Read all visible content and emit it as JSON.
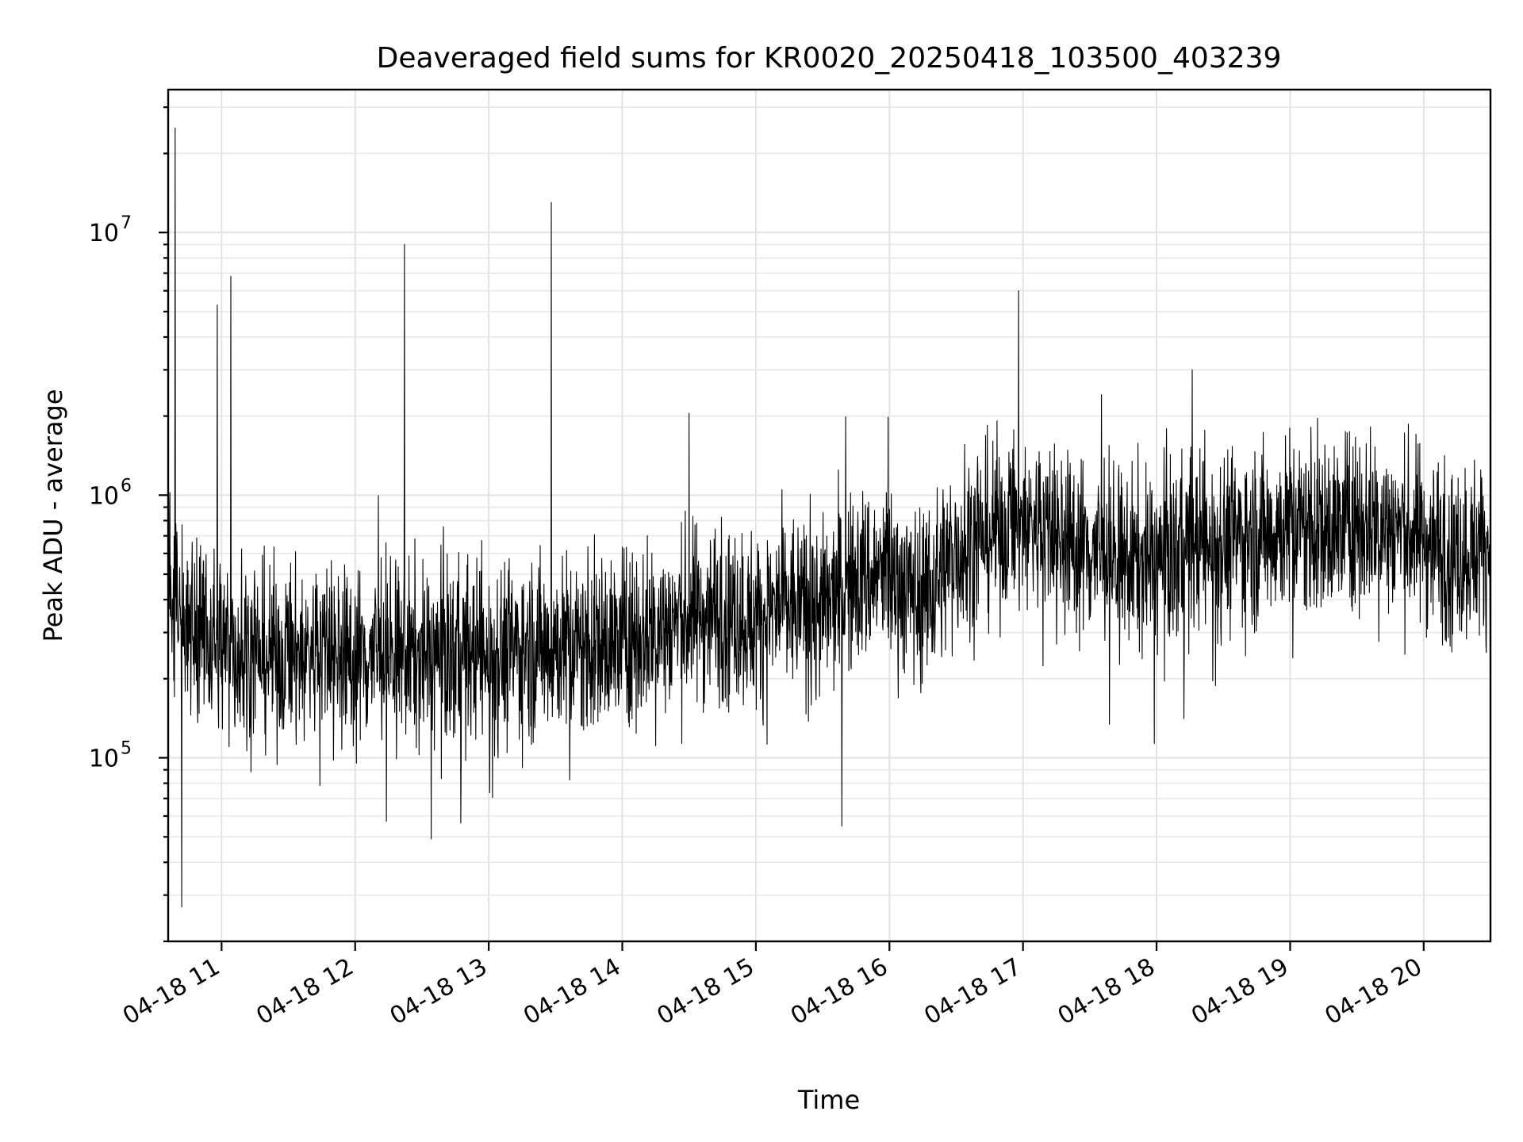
{
  "chart_data": {
    "type": "line",
    "title": "Deaveraged field sums for KR0020_20250418_103500_403239",
    "xlabel": "Time",
    "ylabel": "Peak ADU - average",
    "xlim": [
      "04-18 10:36",
      "04-18 20:30"
    ],
    "ylim": [
      20000,
      35000000
    ],
    "y_scale": "log",
    "grid": true,
    "line_color": "#000000",
    "x_ticks": [
      {
        "time": "04-18 11:00",
        "label": "04-18 11"
      },
      {
        "time": "04-18 12:00",
        "label": "04-18 12"
      },
      {
        "time": "04-18 13:00",
        "label": "04-18 13"
      },
      {
        "time": "04-18 14:00",
        "label": "04-18 14"
      },
      {
        "time": "04-18 15:00",
        "label": "04-18 15"
      },
      {
        "time": "04-18 16:00",
        "label": "04-18 16"
      },
      {
        "time": "04-18 17:00",
        "label": "04-18 17"
      },
      {
        "time": "04-18 18:00",
        "label": "04-18 18"
      },
      {
        "time": "04-18 19:00",
        "label": "04-18 19"
      },
      {
        "time": "04-18 20:00",
        "label": "04-18 20"
      }
    ],
    "y_ticks": [
      {
        "value": 100000,
        "base": "10",
        "exp": "5"
      },
      {
        "value": 1000000,
        "base": "10",
        "exp": "6"
      },
      {
        "value": 10000000,
        "base": "10",
        "exp": "7"
      }
    ],
    "series": [
      {
        "x": [
          "04-18 10:36",
          "04-18 10:45",
          "04-18 11:00",
          "04-18 11:15",
          "04-18 11:30",
          "04-18 11:45",
          "04-18 12:00",
          "04-18 12:15",
          "04-18 12:30",
          "04-18 12:45",
          "04-18 13:00",
          "04-18 13:15",
          "04-18 13:30",
          "04-18 13:45",
          "04-18 14:00",
          "04-18 14:15",
          "04-18 14:30",
          "04-18 14:45",
          "04-18 15:00",
          "04-18 15:15",
          "04-18 15:30",
          "04-18 15:45",
          "04-18 16:00",
          "04-18 16:15",
          "04-18 16:30",
          "04-18 16:45",
          "04-18 17:00",
          "04-18 17:15",
          "04-18 17:30",
          "04-18 17:45",
          "04-18 18:00",
          "04-18 18:15",
          "04-18 18:30",
          "04-18 18:45",
          "04-18 19:00",
          "04-18 19:15",
          "04-18 19:30",
          "04-18 19:45",
          "04-18 20:00",
          "04-18 20:15",
          "04-18 20:30"
        ],
        "y": [
          450000,
          330000,
          270000,
          250000,
          240000,
          260000,
          240000,
          250000,
          240000,
          250000,
          250000,
          260000,
          270000,
          260000,
          280000,
          310000,
          340000,
          370000,
          330000,
          380000,
          360000,
          480000,
          500000,
          400000,
          620000,
          720000,
          800000,
          700000,
          620000,
          560000,
          560000,
          640000,
          680000,
          700000,
          780000,
          720000,
          800000,
          760000,
          690000,
          600000,
          650000
        ]
      }
    ],
    "spikes": [
      {
        "time": "04-18 10:39",
        "value": 25000000
      },
      {
        "time": "04-18 10:42",
        "value": 27000
      },
      {
        "time": "04-18 10:58",
        "value": 5300000
      },
      {
        "time": "04-18 11:04",
        "value": 6800000
      },
      {
        "time": "04-18 12:22",
        "value": 9000000
      },
      {
        "time": "04-18 13:28",
        "value": 13000000
      },
      {
        "time": "04-18 14:30",
        "value": 2050000
      },
      {
        "time": "04-18 16:58",
        "value": 6000000
      },
      {
        "time": "04-18 18:16",
        "value": 3000000
      }
    ]
  }
}
